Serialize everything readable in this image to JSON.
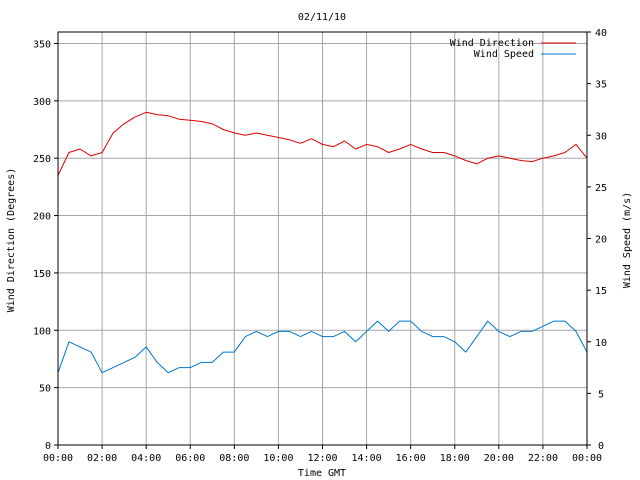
{
  "chart_data": {
    "type": "line",
    "title": "02/11/10",
    "xlabel": "Time GMT",
    "ylabel_left": "Wind Direction (Degrees)",
    "ylabel_right": "Wind Speed (m/s)",
    "x_ticks": [
      "00:00",
      "02:00",
      "04:00",
      "06:00",
      "08:00",
      "10:00",
      "12:00",
      "14:00",
      "16:00",
      "18:00",
      "20:00",
      "22:00",
      "00:00"
    ],
    "x_range_hours": [
      0,
      24
    ],
    "y_left_ticks": [
      0,
      50,
      100,
      150,
      200,
      250,
      300,
      350
    ],
    "y_left_range": [
      0,
      360
    ],
    "y_right_ticks": [
      0,
      5,
      10,
      15,
      20,
      25,
      30,
      35,
      40
    ],
    "y_right_range": [
      0,
      40
    ],
    "grid": true,
    "legend_position": "top-right",
    "series": [
      {
        "name": "Wind Direction",
        "axis": "left",
        "color": "#dd0000",
        "x": [
          0,
          0.5,
          1,
          1.5,
          2,
          2.5,
          3,
          3.5,
          4,
          4.5,
          5,
          5.5,
          6,
          6.5,
          7,
          7.5,
          8,
          8.5,
          9,
          9.5,
          10,
          10.5,
          11,
          11.5,
          12,
          12.5,
          13,
          13.5,
          14,
          14.5,
          15,
          15.5,
          16,
          16.5,
          17,
          17.5,
          18,
          18.5,
          19,
          19.5,
          20,
          20.5,
          21,
          21.5,
          22,
          22.5,
          23,
          23.5,
          24
        ],
        "values": [
          235,
          255,
          258,
          252,
          255,
          272,
          280,
          286,
          290,
          288,
          287,
          284,
          283,
          282,
          280,
          275,
          272,
          270,
          272,
          270,
          268,
          266,
          263,
          267,
          262,
          260,
          265,
          258,
          262,
          260,
          255,
          258,
          262,
          258,
          255,
          255,
          252,
          248,
          245,
          250,
          252,
          250,
          248,
          247,
          250,
          252,
          255,
          262,
          250
        ]
      },
      {
        "name": "Wind Speed",
        "axis": "right",
        "color": "#0077cc",
        "x": [
          0,
          0.5,
          1,
          1.5,
          2,
          2.5,
          3,
          3.5,
          4,
          4.5,
          5,
          5.5,
          6,
          6.5,
          7,
          7.5,
          8,
          8.5,
          9,
          9.5,
          10,
          10.5,
          11,
          11.5,
          12,
          12.5,
          13,
          13.5,
          14,
          14.5,
          15,
          15.5,
          16,
          16.5,
          17,
          17.5,
          18,
          18.5,
          19,
          19.5,
          20,
          20.5,
          21,
          21.5,
          22,
          22.5,
          23,
          23.5,
          24
        ],
        "values": [
          7,
          10,
          9.5,
          9,
          7,
          7.5,
          8,
          8.5,
          9.5,
          8,
          7,
          7.5,
          7.5,
          8,
          8,
          9,
          9,
          10.5,
          11,
          10.5,
          11,
          11,
          10.5,
          11,
          10.5,
          10.5,
          11,
          10,
          11,
          12,
          11,
          12,
          12,
          11,
          10.5,
          10.5,
          10,
          9,
          10.5,
          12,
          11,
          10.5,
          11,
          11,
          11.5,
          12,
          12,
          11,
          9
        ]
      }
    ]
  }
}
